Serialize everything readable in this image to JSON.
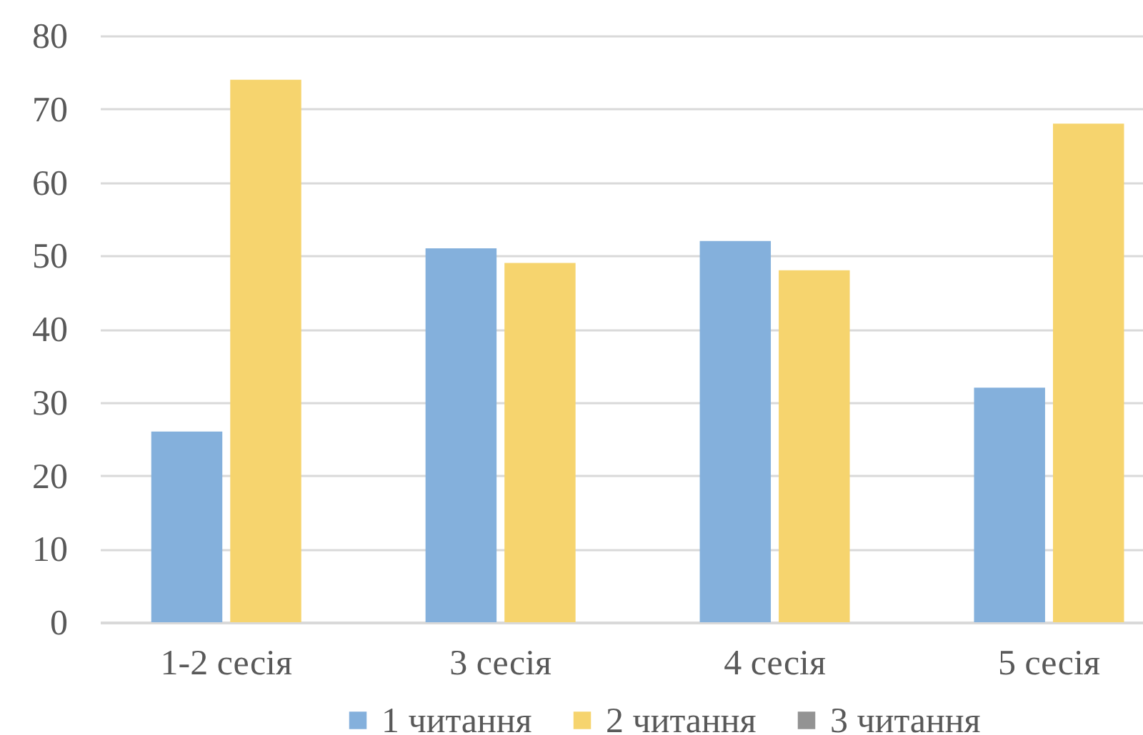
{
  "chart_data": {
    "type": "bar",
    "categories": [
      "1-2 сесія",
      "3 сесія",
      "4 сесія",
      "5 сесія"
    ],
    "series": [
      {
        "name": "1 читання",
        "color": "#84b0dc",
        "values": [
          26,
          51,
          52,
          32
        ]
      },
      {
        "name": "2 читання",
        "color": "#f6d46e",
        "values": [
          74,
          49,
          48,
          68
        ]
      },
      {
        "name": "3 читання",
        "color": "#939393",
        "values": [
          null,
          null,
          null,
          null
        ]
      }
    ],
    "ylim": [
      0,
      80
    ],
    "yticks": [
      0,
      10,
      20,
      30,
      40,
      50,
      60,
      70,
      80
    ],
    "grid": "y",
    "legend": "bottom"
  }
}
